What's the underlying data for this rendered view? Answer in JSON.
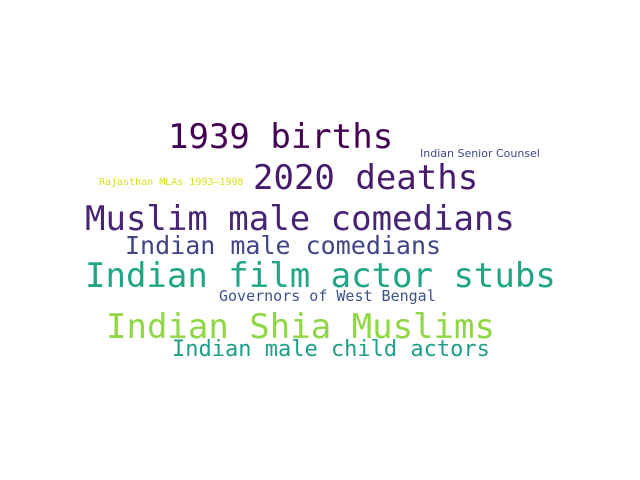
{
  "word_cloud": {
    "words": [
      {
        "text": "1939 births",
        "color": "#440154"
      },
      {
        "text": "2020 deaths",
        "color": "#481a6c"
      },
      {
        "text": "Indian Senior Counsel",
        "color": "#3e4a89"
      },
      {
        "text": "Rajasthan MLAs 1993–1998",
        "color": "#d8e219"
      },
      {
        "text": "Muslim male comedians",
        "color": "#482475"
      },
      {
        "text": "Indian male comedians",
        "color": "#414487"
      },
      {
        "text": "Indian film actor stubs",
        "color": "#21a685"
      },
      {
        "text": "Governors of West Bengal",
        "color": "#3b528b"
      },
      {
        "text": "Indian Shia Muslims",
        "color": "#8fd744"
      },
      {
        "text": "Indian male child actors",
        "color": "#1f9e89"
      }
    ]
  }
}
